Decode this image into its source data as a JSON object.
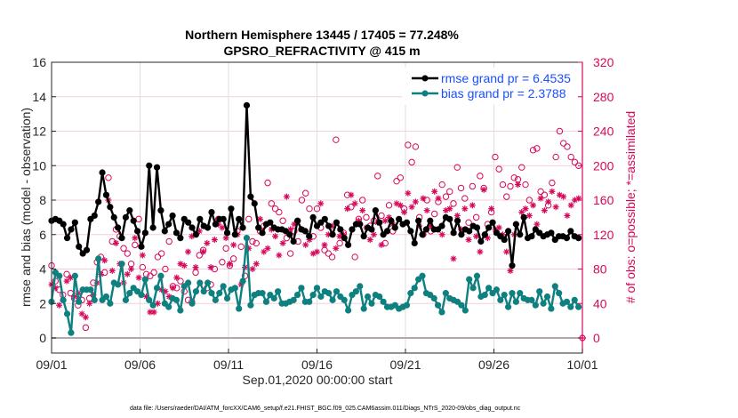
{
  "chart_data": {
    "type": "line",
    "title": "Northern Hemisphere 13445 / 17405 = 77.248%",
    "subtitle": "GPSRO_REFRACTIVITY @ 415 m",
    "xlabel": "Sep.01,2020 00:00:00 start",
    "ylabel": "rmse and bias (model - observation)",
    "ylabel_right": "# of obs: o=possible; *=assimilated",
    "footnote": "data file: /Users/raeder/DAI/ATM_forcXX/CAM6_setup/f.e21.FHIST_BGC.f09_025.CAM6assim.011/Diags_NTrS_2020-09/obs_diag_output.nc",
    "xlim_days": [
      0,
      30
    ],
    "ylim": [
      -0.9,
      16
    ],
    "ylim_right": [
      0,
      320
    ],
    "x_ticks": [
      "09/01",
      "09/06",
      "09/11",
      "09/16",
      "09/21",
      "09/26",
      "10/01"
    ],
    "x_tick_days": [
      0,
      5,
      10,
      15,
      20,
      25,
      30
    ],
    "y_ticks": [
      0,
      2,
      4,
      6,
      8,
      10,
      12,
      14,
      16
    ],
    "y_ticks_right": [
      0,
      40,
      80,
      120,
      160,
      200,
      240,
      280,
      320
    ],
    "grid": "horizontal-right-axis + vertical",
    "legend_position": "top-right",
    "legend": [
      "rmse grand pr = 6.4535",
      "bias grand pr = 2.3788"
    ],
    "x_step_days": 0.25,
    "colors": {
      "rmse": "#000000",
      "bias": "#0f8080",
      "obs": "#d6085a",
      "legend_text": "#1a4fff",
      "zero_line": "#b3a6ad"
    },
    "series": [
      {
        "name": "rmse",
        "values": [
          6.8,
          6.9,
          6.8,
          6.6,
          5.8,
          6.3,
          6.7,
          5.3,
          4.9,
          5.1,
          6.9,
          7.1,
          7.9,
          9.6,
          8.3,
          7.6,
          7.0,
          6.4,
          5.8,
          7.0,
          7.4,
          6.8,
          6.2,
          5.3,
          6.1,
          10.0,
          6.4,
          9.9,
          7.4,
          6.2,
          6.6,
          7.1,
          6.1,
          5.8,
          6.9,
          6.7,
          6.4,
          6.0,
          6.9,
          6.5,
          6.4,
          7.3,
          6.6,
          6.9,
          6.9,
          6.1,
          7.5,
          6.0,
          6.9,
          6.4,
          13.5,
          8.2,
          7.8,
          6.4,
          6.1,
          6.6,
          6.7,
          6.4,
          6.3,
          6.3,
          6.2,
          6.0,
          5.6,
          6.8,
          6.3,
          6.2,
          5.9,
          7.0,
          6.5,
          6.7,
          6.9,
          6.5,
          6.0,
          6.7,
          6.3,
          5.8,
          5.4,
          6.3,
          6.6,
          6.6,
          5.9,
          6.4,
          6.3,
          7.4,
          6.7,
          6.0,
          6.2,
          6.8,
          6.4,
          6.9,
          6.6,
          6.7,
          6.2,
          5.5,
          6.8,
          6.0,
          6.3,
          6.8,
          6.3,
          6.3,
          6.5,
          7.0,
          6.9,
          6.1,
          6.8,
          6.0,
          6.3,
          6.2,
          6.5,
          6.4,
          5.6,
          6.0,
          6.4,
          6.7,
          6.1,
          5.9,
          5.7,
          6.2,
          4.2,
          6.6,
          6.0,
          7.0,
          5.8,
          5.9,
          6.3,
          6.1,
          5.9,
          6.0,
          6.1,
          5.7,
          5.9,
          5.9,
          5.8,
          6.2,
          5.9,
          5.8
        ]
      },
      {
        "name": "bias",
        "values": [
          2.1,
          3.8,
          3.6,
          2.2,
          1.4,
          0.3,
          3.6,
          2.1,
          2.8,
          2.8,
          2.8,
          2.2,
          4.6,
          2.2,
          2.4,
          2.0,
          3.2,
          3.1,
          4.3,
          2.2,
          2.6,
          2.9,
          2.7,
          2.5,
          3.4,
          2.2,
          1.9,
          2.9,
          3.6,
          2.0,
          1.8,
          2.3,
          2.2,
          1.6,
          3.0,
          3.2,
          2.0,
          2.7,
          3.2,
          2.7,
          3.2,
          2.6,
          2.2,
          2.6,
          3.0,
          2.3,
          2.8,
          2.9,
          1.7,
          3.3,
          5.8,
          1.9,
          2.5,
          2.6,
          2.6,
          2.1,
          2.5,
          2.3,
          2.7,
          2.0,
          2.0,
          2.1,
          2.2,
          2.5,
          2.9,
          2.1,
          2.1,
          2.5,
          2.9,
          2.4,
          2.7,
          2.6,
          2.2,
          2.7,
          2.4,
          2.2,
          1.6,
          2.5,
          2.7,
          3.0,
          1.7,
          2.4,
          2.0,
          2.5,
          2.4,
          2.1,
          1.8,
          1.8,
          1.9,
          1.7,
          1.8,
          1.9,
          2.6,
          2.9,
          3.4,
          3.6,
          2.6,
          2.5,
          2.3,
          1.9,
          1.5,
          2.6,
          2.3,
          2.2,
          2.1,
          1.9,
          1.6,
          3.4,
          2.9,
          3.6,
          2.4,
          2.5,
          2.9,
          2.6,
          2.8,
          2.2,
          2.5,
          1.8,
          2.6,
          2.1,
          2.6,
          2.3,
          2.2,
          2.2,
          1.9,
          2.7,
          2.0,
          2.4,
          1.7,
          3.0,
          2.6,
          2.0,
          2.1,
          1.8,
          2.2,
          1.8
        ]
      },
      {
        "name": "obs_possible",
        "values": [
          84,
          66,
          56,
          50,
          74,
          52,
          46,
          38,
          44,
          12,
          46,
          64,
          88,
          94,
          76,
          186,
          112,
          126,
          118,
          104,
          98,
          86,
          108,
          138,
          82,
          74,
          72,
          76,
          94,
          98,
          80,
          112,
          60,
          58,
          66,
          54,
          44,
          42,
          76,
          96,
          102,
          58,
          62,
          80,
          138,
          88,
          104,
          84,
          92,
          124,
          106,
          72,
          138,
          112,
          110,
          124,
          130,
          180,
          156,
          150,
          146,
          136,
          116,
          98,
          124,
          112,
          160,
          168,
          150,
          118,
          150,
          128,
          102,
          98,
          94,
          230,
          110,
          122,
          166,
          152,
          94,
          138,
          160,
          140,
          130,
          136,
          188,
          142,
          110,
          154,
          124,
          182,
          186,
          150,
          224,
          204,
          222,
          140,
          120,
          160,
          124,
          144,
          158,
          178,
          164,
          170,
          156,
          198,
          174,
          162,
          134,
          176,
          140,
          188,
          174,
          132,
          146,
          210,
          196,
          178,
          164,
          176,
          186,
          184,
          198,
          178,
          160,
          218,
          220,
          170,
          166,
          154,
          180,
          210,
          240,
          226,
          222,
          210,
          204,
          200
        ]
      },
      {
        "name": "obs_assimilated",
        "values": [
          62,
          58,
          38,
          44,
          66,
          70,
          48,
          52,
          28,
          24,
          40,
          50,
          64,
          74,
          90,
          160,
          78,
          110,
          86,
          64,
          74,
          80,
          116,
          70,
          96,
          48,
          30,
          30,
          40,
          56,
          54,
          48,
          58,
          70,
          86,
          84,
          100,
          118,
          82,
          124,
          100,
          110,
          82,
          114,
          132,
          128,
          116,
          86,
          108,
          120,
          62,
          82,
          104,
          80,
          86,
          138,
          100,
          104,
          126,
          118,
          96,
          110,
          164,
          126,
          132,
          136,
          126,
          108,
          114,
          98,
          100,
          156,
          108,
          120,
          130,
          104,
          118,
          120,
          150,
          166,
          156,
          136,
          148,
          128,
          114,
          120,
          134,
          108,
          136,
          140,
          132,
          156,
          154,
          146,
          168,
          152,
          158,
          130,
          162,
          148,
          130,
          170,
          162,
          120,
          148,
          150,
          92,
          142,
          126,
          150,
          114,
          154,
          118,
          100,
          172,
          116,
          150,
          126,
          128,
          120,
          100,
          78,
          120,
          178,
          146,
          150,
          142,
          154,
          132,
          162,
          148,
          158,
          170,
          152,
          166,
          164,
          142,
          154,
          160,
          162
        ]
      }
    ]
  }
}
